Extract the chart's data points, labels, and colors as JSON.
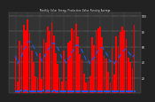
{
  "title": "Monthly Solar Energy Production Value Running Average",
  "bar_color": "#ff0000",
  "avg_line_color": "#2255dd",
  "background_color": "#222222",
  "plot_bg_color": "#333333",
  "grid_color": "#ffffff",
  "bar_values": [
    48,
    15,
    68,
    62,
    88,
    82,
    95,
    78,
    55,
    40,
    22,
    18,
    52,
    18,
    70,
    65,
    86,
    80,
    92,
    75,
    52,
    38,
    20,
    15,
    55,
    16,
    66,
    68,
    84,
    82,
    90,
    74,
    50,
    44,
    25,
    14,
    15,
    22,
    72,
    62,
    82,
    84,
    86,
    72,
    48,
    45,
    28,
    14,
    58,
    24,
    74,
    60,
    79,
    86,
    82,
    70,
    46,
    40,
    32,
    88
  ],
  "avg_values": [
    48,
    38,
    44,
    48,
    56,
    60,
    66,
    67,
    64,
    60,
    54,
    47,
    47,
    42,
    46,
    50,
    56,
    59,
    64,
    65,
    62,
    58,
    52,
    45,
    45,
    39,
    43,
    47,
    53,
    57,
    62,
    62,
    59,
    55,
    50,
    43,
    44,
    38,
    43,
    46,
    51,
    55,
    59,
    59,
    56,
    52,
    47,
    41,
    42,
    38,
    42,
    45,
    49,
    53,
    56,
    57,
    54,
    50,
    46,
    50
  ],
  "dot_values": [
    2,
    2,
    2,
    3,
    2,
    3,
    2,
    2,
    2,
    2,
    2,
    2,
    2,
    2,
    3,
    2,
    3,
    2,
    2,
    3,
    2,
    2,
    2,
    2,
    2,
    2,
    2,
    2,
    2,
    2,
    2,
    2,
    2,
    2,
    2,
    2,
    2,
    2,
    2,
    2,
    2,
    2,
    2,
    2,
    2,
    2,
    2,
    2,
    2,
    2,
    2,
    2,
    2,
    2,
    2,
    2,
    2,
    2,
    2,
    2
  ],
  "ylim": [
    0,
    105
  ],
  "ytick_labels": [
    "20",
    "40",
    "60",
    "80",
    "100"
  ],
  "ytick_vals": [
    20,
    40,
    60,
    80,
    100
  ],
  "n_bars": 60
}
